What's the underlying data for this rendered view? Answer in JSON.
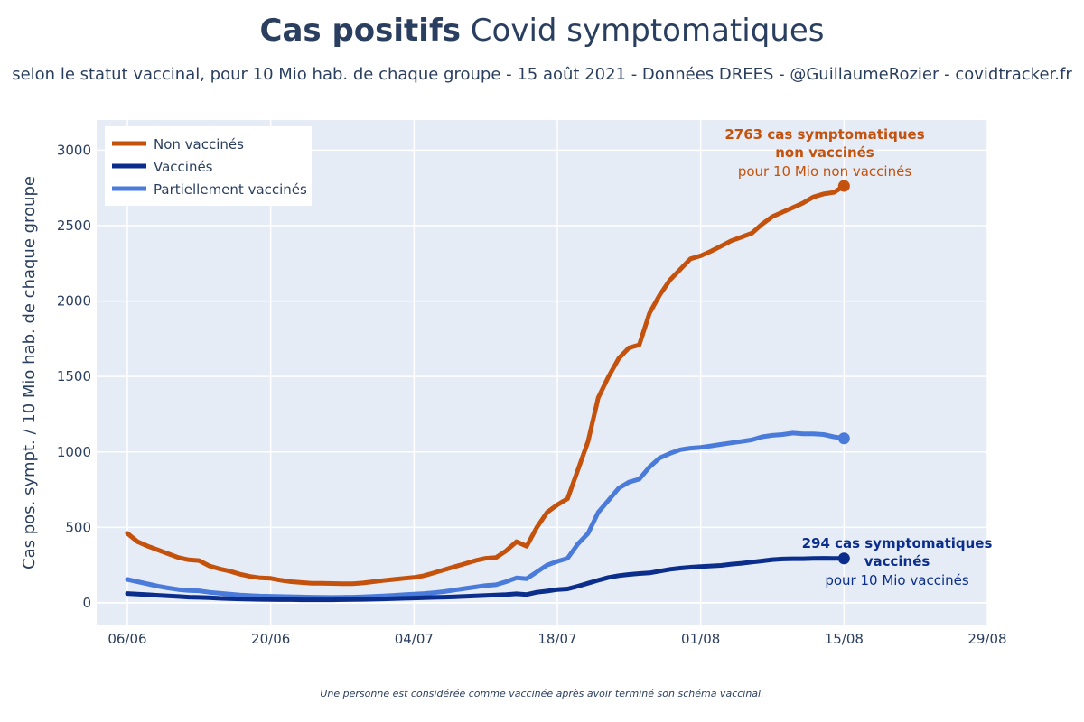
{
  "header": {
    "title_bold": "Cas positifs",
    "title_rest": " Covid symptomatiques",
    "subtitle": "selon le statut vaccinal, pour 10 Mio hab. de chaque groupe - 15 août 2021 - Données DREES - @GuillaumeRozier - covidtracker.fr"
  },
  "footnote": "Une personne est considérée comme vaccinée après avoir terminé son schéma vaccinal.",
  "colors": {
    "non_vaccines": "#c4510c",
    "vaccines": "#0b2d8c",
    "partiels": "#4a7bdb",
    "plot_bg": "#e5ecf6",
    "text": "#2a3f5f"
  },
  "chart_data": {
    "type": "line",
    "title": "Cas positifs Covid symptomatiques",
    "xlabel": "",
    "ylabel": "Cas pos. sympt. / 10 Mio hab. de chaque groupe",
    "xlim": [
      -3,
      84
    ],
    "ylim": [
      -150,
      3200
    ],
    "xticks": [
      {
        "day": 0,
        "label": "06/06"
      },
      {
        "day": 14,
        "label": "20/06"
      },
      {
        "day": 28,
        "label": "04/07"
      },
      {
        "day": 42,
        "label": "18/07"
      },
      {
        "day": 56,
        "label": "01/08"
      },
      {
        "day": 70,
        "label": "15/08"
      },
      {
        "day": 84,
        "label": "29/08"
      }
    ],
    "yticks": [
      0,
      500,
      1000,
      1500,
      2000,
      2500,
      3000
    ],
    "grid": true,
    "legend_position": "top-left",
    "series": [
      {
        "key": "non_vaccines",
        "name": "Non vaccinés",
        "x": [
          0,
          1,
          2,
          3,
          4,
          5,
          6,
          7,
          8,
          9,
          10,
          11,
          12,
          13,
          14,
          15,
          16,
          17,
          18,
          19,
          20,
          21,
          22,
          23,
          24,
          25,
          26,
          27,
          28,
          29,
          30,
          31,
          32,
          33,
          34,
          35,
          36,
          37,
          38,
          39,
          40,
          41,
          42,
          43,
          44,
          45,
          46,
          47,
          48,
          49,
          50,
          51,
          52,
          53,
          54,
          55,
          56,
          57,
          58,
          59,
          60,
          61,
          62,
          63,
          64,
          65,
          66,
          67,
          68,
          69,
          70
        ],
        "values": [
          460,
          405,
          375,
          350,
          325,
          300,
          285,
          280,
          245,
          225,
          210,
          190,
          175,
          165,
          162,
          150,
          140,
          135,
          130,
          130,
          128,
          127,
          127,
          132,
          140,
          148,
          155,
          162,
          168,
          180,
          200,
          220,
          240,
          260,
          280,
          295,
          300,
          345,
          405,
          375,
          500,
          600,
          650,
          690,
          880,
          1070,
          1360,
          1500,
          1620,
          1690,
          1710,
          1920,
          2040,
          2140,
          2210,
          2280,
          2300,
          2330,
          2365,
          2400,
          2425,
          2450,
          2510,
          2560,
          2590,
          2620,
          2650,
          2690,
          2710,
          2720,
          2763
        ]
      },
      {
        "key": "vaccines",
        "name": "Vaccinés",
        "x": [
          0,
          1,
          2,
          3,
          4,
          5,
          6,
          7,
          8,
          9,
          10,
          11,
          12,
          13,
          14,
          15,
          16,
          17,
          18,
          19,
          20,
          21,
          22,
          23,
          24,
          25,
          26,
          27,
          28,
          29,
          30,
          31,
          32,
          33,
          34,
          35,
          36,
          37,
          38,
          39,
          40,
          41,
          42,
          43,
          44,
          45,
          46,
          47,
          48,
          49,
          50,
          51,
          52,
          53,
          54,
          55,
          56,
          57,
          58,
          59,
          60,
          61,
          62,
          63,
          64,
          65,
          66,
          67,
          68,
          69,
          70
        ],
        "values": [
          62,
          58,
          54,
          50,
          46,
          42,
          38,
          36,
          34,
          30,
          28,
          26,
          24,
          23,
          22,
          21,
          21,
          20,
          20,
          20,
          20,
          21,
          22,
          23,
          24,
          26,
          28,
          30,
          32,
          34,
          36,
          38,
          40,
          43,
          46,
          49,
          52,
          55,
          60,
          55,
          70,
          78,
          88,
          92,
          110,
          130,
          150,
          168,
          180,
          188,
          194,
          198,
          210,
          222,
          230,
          236,
          240,
          244,
          248,
          256,
          262,
          270,
          278,
          286,
          290,
          292,
          292,
          294,
          295,
          294,
          294
        ]
      },
      {
        "key": "partiels",
        "name": "Partiellement vaccinés",
        "x": [
          0,
          1,
          2,
          3,
          4,
          5,
          6,
          7,
          8,
          9,
          10,
          11,
          12,
          13,
          14,
          15,
          16,
          17,
          18,
          19,
          20,
          21,
          22,
          23,
          24,
          25,
          26,
          27,
          28,
          29,
          30,
          31,
          32,
          33,
          34,
          35,
          36,
          37,
          38,
          39,
          40,
          41,
          42,
          43,
          44,
          45,
          46,
          47,
          48,
          49,
          50,
          51,
          52,
          53,
          54,
          55,
          56,
          57,
          58,
          59,
          60,
          61,
          62,
          63,
          64,
          65,
          66,
          67,
          68,
          69,
          70
        ],
        "values": [
          155,
          140,
          125,
          110,
          98,
          88,
          82,
          80,
          70,
          64,
          58,
          52,
          48,
          45,
          44,
          42,
          41,
          39,
          38,
          37,
          36,
          37,
          38,
          40,
          43,
          46,
          50,
          54,
          58,
          62,
          68,
          75,
          85,
          95,
          105,
          115,
          120,
          140,
          165,
          160,
          205,
          250,
          275,
          295,
          390,
          460,
          600,
          680,
          760,
          800,
          820,
          900,
          960,
          990,
          1015,
          1025,
          1030,
          1040,
          1050,
          1060,
          1070,
          1080,
          1100,
          1110,
          1115,
          1125,
          1120,
          1120,
          1115,
          1100,
          1090
        ]
      }
    ],
    "annotations": [
      {
        "series": "non_vaccines",
        "x": 70,
        "y": 2763,
        "line1": "2763 cas symptomatiques",
        "line2": "non vaccinés",
        "line3": "pour 10 Mio non vaccinés"
      },
      {
        "series": "vaccines",
        "x": 70,
        "y": 294,
        "line1": "294 cas symptomatiques",
        "line2": "vaccinés",
        "line3": "pour 10 Mio vaccinés"
      }
    ]
  }
}
